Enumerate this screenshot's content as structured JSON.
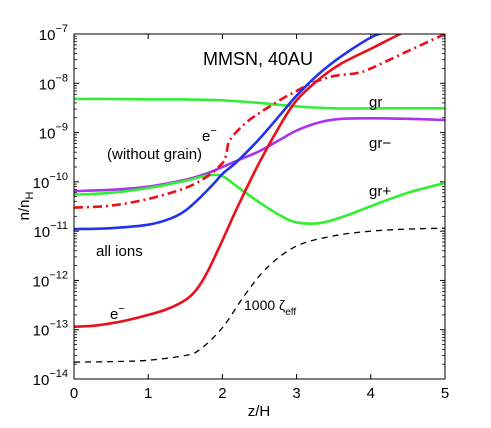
{
  "chart_data": {
    "type": "line",
    "title": "MMSN, 40AU",
    "xlabel": "z/H",
    "ylabel": {
      "base": "n/n",
      "sub": "H"
    },
    "xlim": [
      0,
      5
    ],
    "ylim_log10": [
      -14,
      -7
    ],
    "yscale": "log",
    "grid": false,
    "x_ticks": [
      {
        "value": 0,
        "label": "0"
      },
      {
        "value": 1,
        "label": "1"
      },
      {
        "value": 2,
        "label": "2"
      },
      {
        "value": 3,
        "label": "3"
      },
      {
        "value": 4,
        "label": "4"
      },
      {
        "value": 5,
        "label": "5"
      }
    ],
    "y_ticks": [
      {
        "exp": -14,
        "base": "10",
        "sup": "−14"
      },
      {
        "exp": -13,
        "base": "10",
        "sup": "−13"
      },
      {
        "exp": -12,
        "base": "10",
        "sup": "−12"
      },
      {
        "exp": -11,
        "base": "10",
        "sup": "−11"
      },
      {
        "exp": -10,
        "base": "10",
        "sup": "−10"
      },
      {
        "exp": -9,
        "base": "10",
        "sup": "−9"
      },
      {
        "exp": -8,
        "base": "10",
        "sup": "−8"
      },
      {
        "exp": -7,
        "base": "10",
        "sup": "−7"
      }
    ],
    "series": [
      {
        "key": "gr",
        "color": "#33ee33",
        "dash": "solid",
        "x": [
          0,
          0.5,
          1.0,
          1.5,
          2.0,
          2.5,
          3.0,
          3.5,
          4.0,
          4.5,
          5.0
        ],
        "y": [
          4.8e-09,
          4.8e-09,
          4.7e-09,
          4.7e-09,
          4.5e-09,
          4e-09,
          3.4e-09,
          3.1e-09,
          3.1e-09,
          3.1e-09,
          3.1e-09
        ]
      },
      {
        "key": "gr-",
        "color": "#aa33ee",
        "dash": "solid",
        "x": [
          0,
          0.5,
          1.0,
          1.5,
          1.8,
          2.0,
          2.2,
          2.5,
          2.8,
          3.0,
          3.3,
          3.6,
          4.0,
          4.5,
          5.0
        ],
        "y": [
          6.5e-11,
          6.9e-11,
          8e-11,
          1.1e-10,
          1.5e-10,
          2e-10,
          2.7e-10,
          4.2e-10,
          7.5e-10,
          1.1e-09,
          1.6e-09,
          1.9e-09,
          1.95e-09,
          1.9e-09,
          1.8e-09
        ]
      },
      {
        "key": "gr+",
        "color": "#33ee33",
        "dash": "solid",
        "x": [
          0,
          0.5,
          1.0,
          1.5,
          1.8,
          2.0,
          2.2,
          2.5,
          2.8,
          3.0,
          3.3,
          3.6,
          4.0,
          4.5,
          5.0
        ],
        "y": [
          5.5e-11,
          6e-11,
          7.5e-11,
          1.05e-10,
          1.35e-10,
          1.3e-10,
          8e-11,
          3.8e-11,
          2e-11,
          1.5e-11,
          1.45e-11,
          1.9e-11,
          3.2e-11,
          6e-11,
          9.5e-11
        ]
      },
      {
        "key": "e- (without grain)",
        "color": "#e8101a",
        "dash": "dashdot",
        "x": [
          0,
          0.5,
          1.0,
          1.5,
          1.8,
          2.0,
          2.05,
          2.1,
          2.3,
          2.5,
          2.8,
          3.0,
          3.2,
          3.5,
          3.8,
          4.0,
          4.5,
          5.0
        ],
        "y": [
          3e-11,
          3.3e-11,
          4.5e-11,
          7.5e-11,
          1.3e-10,
          2.4e-10,
          3.5e-10,
          7e-10,
          1.5e-09,
          2.5e-09,
          4.8e-09,
          7e-09,
          1e-08,
          1.4e-08,
          1.6e-08,
          2e-08,
          4.5e-08,
          1e-07
        ]
      },
      {
        "key": "all ions",
        "color": "#2233ee",
        "dash": "solid",
        "x": [
          0,
          0.5,
          1.0,
          1.3,
          1.5,
          1.7,
          1.9,
          2.0,
          2.2,
          2.5,
          2.8,
          3.0,
          3.3,
          3.6,
          4.0,
          4.2
        ],
        "y": [
          1.1e-11,
          1.15e-11,
          1.35e-11,
          1.8e-11,
          2.6e-11,
          4.8e-11,
          9.8e-11,
          1.45e-10,
          2.6e-10,
          7.5e-10,
          2.5e-09,
          5.6e-09,
          1.55e-08,
          3.5e-08,
          8.5e-08,
          1.1e-07
        ]
      },
      {
        "key": "e-",
        "color": "#e8101a",
        "dash": "solid",
        "x": [
          0,
          0.25,
          0.5,
          0.75,
          1.0,
          1.25,
          1.5,
          1.65,
          1.8,
          2.0,
          2.2,
          2.5,
          2.8,
          3.0,
          3.3,
          3.6,
          4.0,
          4.3,
          4.45
        ],
        "y": [
          1.15e-13,
          1.2e-13,
          1.35e-13,
          1.6e-13,
          2e-13,
          2.6e-13,
          4e-13,
          6.5e-13,
          1.5e-12,
          6.5e-12,
          3e-11,
          2.5e-10,
          1.6e-09,
          4.5e-09,
          1.2e-08,
          2.5e-08,
          5e-08,
          8.5e-08,
          1.1e-07
        ]
      },
      {
        "key": "1000 zeta_eff",
        "color": "#000000",
        "dash": "dashed",
        "x": [
          0,
          0.5,
          1.0,
          1.5,
          1.7,
          2.0,
          2.3,
          2.6,
          3.0,
          3.5,
          4.0,
          4.5,
          5.0
        ],
        "y": [
          2.2e-14,
          2.25e-14,
          2.4e-14,
          3e-14,
          4e-14,
          1.1e-13,
          5e-13,
          1.8e-12,
          5e-12,
          8e-12,
          1e-11,
          1.1e-11,
          1.15e-11
        ]
      }
    ],
    "annotations": {
      "gr": "gr",
      "gr_minus": "gr−",
      "gr_plus": "gr+",
      "e_wg_sym": "e",
      "e_wg_sup": "−",
      "without_grain": "(without grain)",
      "all_ions": "all ions",
      "e_sym": "e",
      "e_sup": "−",
      "zeta_pre": "1000 ζ",
      "zeta_sub": "eff"
    }
  }
}
